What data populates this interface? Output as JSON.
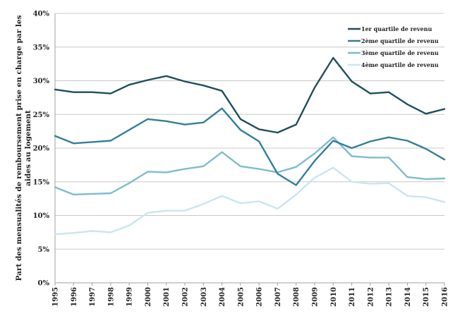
{
  "chart_data": {
    "type": "line",
    "title": "",
    "xlabel": "",
    "ylabel": "Part des mensualités de remboursement prise en charge par les aides au logement",
    "ylabel_lines": [
      "Part des mensualités de remboursement prise en charge par les",
      "aides au logement"
    ],
    "ylim": [
      0,
      0.4
    ],
    "y_ticks": [
      {
        "value": 0.0,
        "label": "0%"
      },
      {
        "value": 0.05,
        "label": "5%"
      },
      {
        "value": 0.1,
        "label": "10%"
      },
      {
        "value": 0.15,
        "label": "15%"
      },
      {
        "value": 0.2,
        "label": "20%"
      },
      {
        "value": 0.25,
        "label": "25%"
      },
      {
        "value": 0.3,
        "label": "30%"
      },
      {
        "value": 0.35,
        "label": "35%"
      },
      {
        "value": 0.4,
        "label": "40%"
      }
    ],
    "categories": [
      "1995",
      "1996",
      "1997",
      "1998",
      "1999",
      "2000",
      "2001",
      "2002",
      "2003",
      "2004",
      "2005",
      "2006",
      "2007",
      "2008",
      "2009",
      "2010",
      "2011",
      "2012",
      "2013",
      "2014",
      "2015",
      "2016"
    ],
    "grid": true,
    "legend_position": "top-right",
    "series": [
      {
        "name": "1er quartile de revenu",
        "color": "#1f4e5f",
        "values": [
          0.287,
          0.283,
          0.283,
          0.281,
          0.294,
          0.301,
          0.307,
          0.299,
          0.293,
          0.285,
          0.243,
          0.228,
          0.223,
          0.235,
          0.29,
          0.334,
          0.299,
          0.281,
          0.283,
          0.265,
          0.251,
          0.258
        ]
      },
      {
        "name": "2ème quartile de revenu",
        "color": "#347f96",
        "values": [
          0.218,
          0.207,
          0.209,
          0.211,
          0.227,
          0.243,
          0.24,
          0.235,
          0.238,
          0.259,
          0.227,
          0.21,
          0.162,
          0.145,
          0.181,
          0.211,
          0.2,
          0.21,
          0.216,
          0.211,
          0.199,
          0.183
        ]
      },
      {
        "name": "3ème quartile de revenu",
        "color": "#7dbcd0",
        "values": [
          0.142,
          0.131,
          0.132,
          0.133,
          0.148,
          0.165,
          0.164,
          0.169,
          0.173,
          0.194,
          0.173,
          0.169,
          0.164,
          0.172,
          0.192,
          0.216,
          0.188,
          0.186,
          0.186,
          0.157,
          0.154,
          0.155
        ]
      },
      {
        "name": "4ème quartile de revenu",
        "color": "#c8e6f0",
        "values": [
          0.072,
          0.074,
          0.077,
          0.075,
          0.085,
          0.104,
          0.107,
          0.107,
          0.117,
          0.129,
          0.118,
          0.121,
          0.11,
          0.131,
          0.156,
          0.171,
          0.15,
          0.147,
          0.148,
          0.129,
          0.127,
          0.12
        ]
      }
    ]
  }
}
